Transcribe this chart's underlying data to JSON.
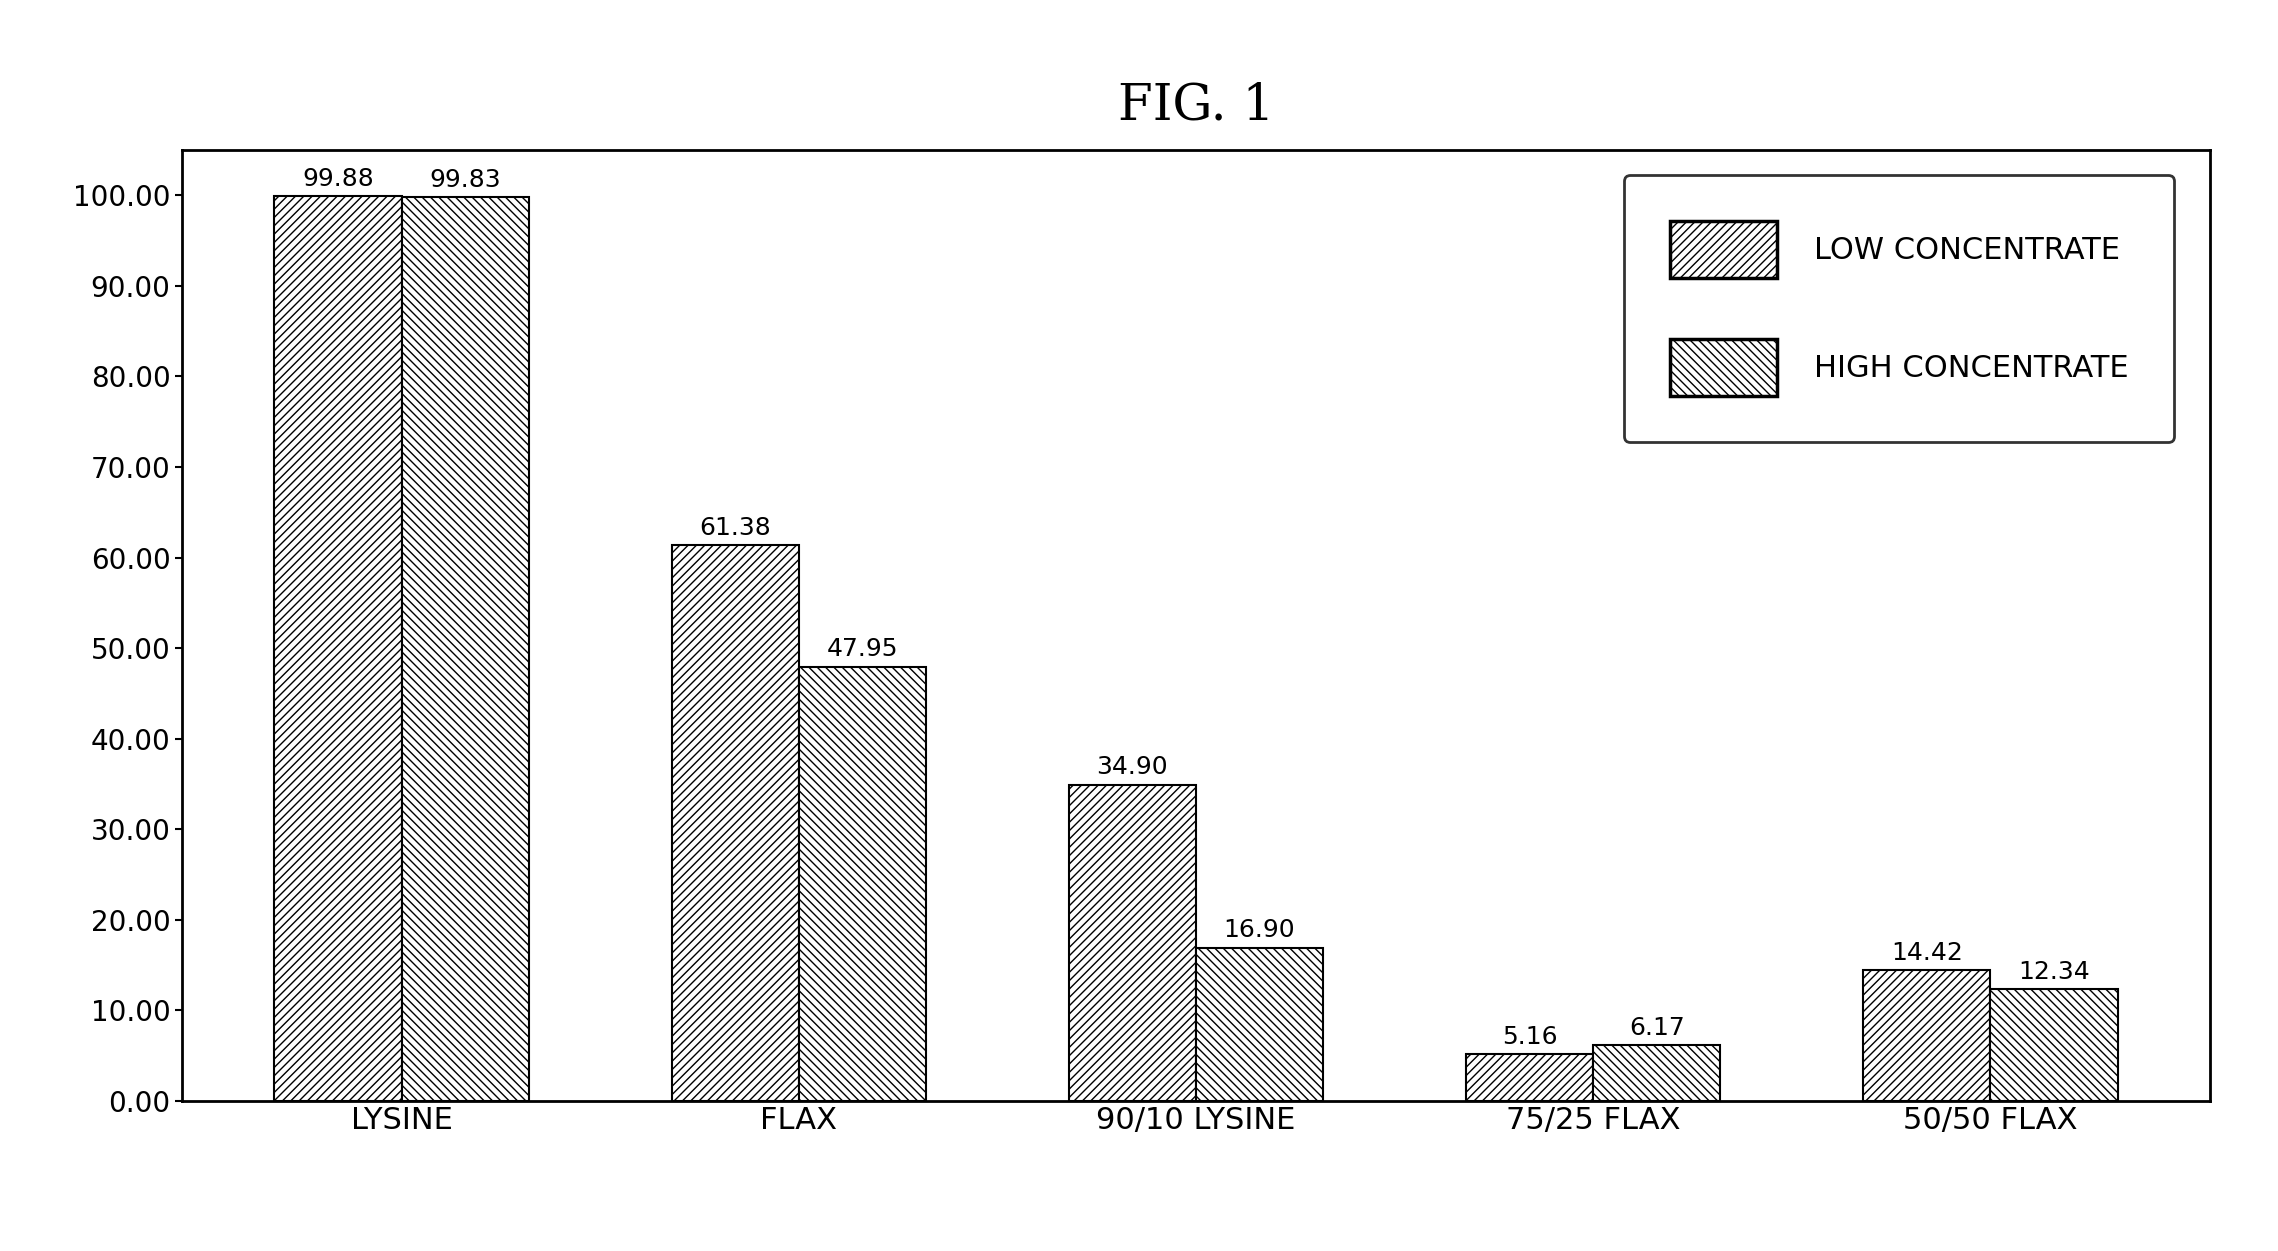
{
  "title": "FIG. 1",
  "categories": [
    "LYSINE",
    "FLAX",
    "90/10 LYSINE",
    "75/25 FLAX",
    "50/50 FLAX"
  ],
  "low_concentrate": [
    99.88,
    61.38,
    34.9,
    5.16,
    14.42
  ],
  "high_concentrate": [
    99.83,
    47.95,
    16.9,
    6.17,
    12.34
  ],
  "legend_labels": [
    "LOW CONCENTRATE",
    "HIGH CONCENTRATE"
  ],
  "ylim": [
    0,
    105
  ],
  "yticks": [
    0.0,
    10.0,
    20.0,
    30.0,
    40.0,
    50.0,
    60.0,
    70.0,
    80.0,
    90.0,
    100.0
  ],
  "bar_width": 0.32,
  "hatch_low": "////",
  "hatch_high": "\\\\\\\\",
  "bar_edgecolor": "#000000",
  "bar_facecolor": "#ffffff",
  "background_color": "#ffffff",
  "title_fontsize": 36,
  "label_fontsize": 22,
  "tick_fontsize": 20,
  "legend_fontsize": 22,
  "annotation_fontsize": 18
}
